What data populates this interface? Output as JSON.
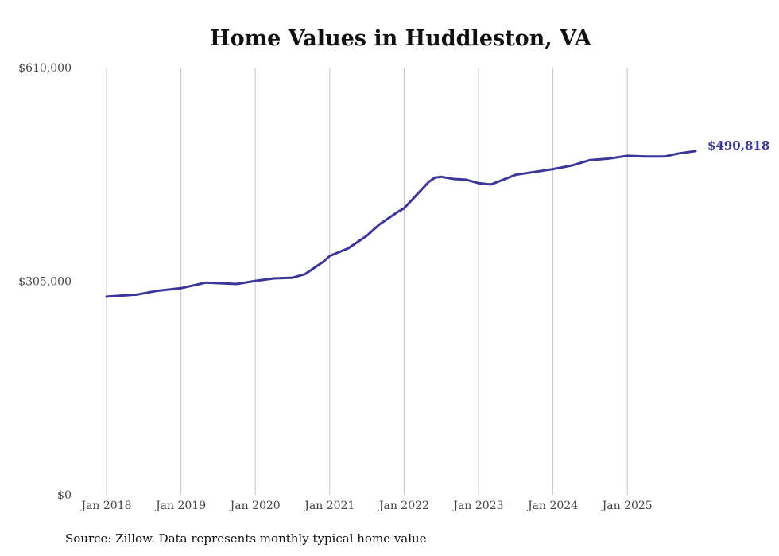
{
  "chart_data": {
    "type": "line",
    "title": "Home Values in Huddleston, VA",
    "source": "Source: Zillow. Data represents monthly typical home value",
    "xlabel": "",
    "ylabel": "",
    "ylim": [
      0,
      610000
    ],
    "y_ticks": [
      {
        "value": 0,
        "label": "$0"
      },
      {
        "value": 305000,
        "label": "$305,000"
      },
      {
        "value": 610000,
        "label": "$610,000"
      }
    ],
    "x_ticks": [
      {
        "month": 0,
        "label": "Jan 2018"
      },
      {
        "month": 12,
        "label": "Jan 2019"
      },
      {
        "month": 24,
        "label": "Jan 2020"
      },
      {
        "month": 36,
        "label": "Jan 2021"
      },
      {
        "month": 48,
        "label": "Jan 2022"
      },
      {
        "month": 60,
        "label": "Jan 2023"
      },
      {
        "month": 72,
        "label": "Jan 2024"
      },
      {
        "month": 84,
        "label": "Jan 2025"
      }
    ],
    "grid": "vertical",
    "line_color": "#3b3699",
    "end_label": "$490,818",
    "series": [
      {
        "name": "Typical home value",
        "points": [
          {
            "date": "2018-01",
            "month": 0,
            "value": 283000
          },
          {
            "date": "2018-06",
            "month": 5,
            "value": 286000
          },
          {
            "date": "2018-09",
            "month": 8,
            "value": 291000
          },
          {
            "date": "2019-01",
            "month": 12,
            "value": 295000
          },
          {
            "date": "2019-05",
            "month": 16,
            "value": 303000
          },
          {
            "date": "2019-10",
            "month": 21,
            "value": 301000
          },
          {
            "date": "2020-01",
            "month": 24,
            "value": 305500
          },
          {
            "date": "2020-04",
            "month": 27,
            "value": 309000
          },
          {
            "date": "2020-07",
            "month": 30,
            "value": 310000
          },
          {
            "date": "2020-09",
            "month": 32,
            "value": 315000
          },
          {
            "date": "2020-12",
            "month": 35,
            "value": 333000
          },
          {
            "date": "2021-01",
            "month": 36,
            "value": 341000
          },
          {
            "date": "2021-04",
            "month": 39,
            "value": 352000
          },
          {
            "date": "2021-07",
            "month": 42,
            "value": 370000
          },
          {
            "date": "2021-09",
            "month": 44,
            "value": 386000
          },
          {
            "date": "2021-12",
            "month": 47,
            "value": 404000
          },
          {
            "date": "2022-01",
            "month": 48,
            "value": 409000
          },
          {
            "date": "2022-03",
            "month": 50,
            "value": 428000
          },
          {
            "date": "2022-05",
            "month": 52,
            "value": 447000
          },
          {
            "date": "2022-06",
            "month": 53,
            "value": 453000
          },
          {
            "date": "2022-07",
            "month": 54,
            "value": 454000
          },
          {
            "date": "2022-09",
            "month": 56,
            "value": 451000
          },
          {
            "date": "2022-11",
            "month": 58,
            "value": 450000
          },
          {
            "date": "2023-01",
            "month": 60,
            "value": 445000
          },
          {
            "date": "2023-03",
            "month": 62,
            "value": 443000
          },
          {
            "date": "2023-05",
            "month": 64,
            "value": 450000
          },
          {
            "date": "2023-07",
            "month": 66,
            "value": 457000
          },
          {
            "date": "2023-10",
            "month": 69,
            "value": 461000
          },
          {
            "date": "2024-01",
            "month": 72,
            "value": 465000
          },
          {
            "date": "2024-04",
            "month": 75,
            "value": 470000
          },
          {
            "date": "2024-07",
            "month": 78,
            "value": 478000
          },
          {
            "date": "2024-10",
            "month": 81,
            "value": 480000
          },
          {
            "date": "2025-01",
            "month": 84,
            "value": 484000
          },
          {
            "date": "2025-04",
            "month": 87,
            "value": 483000
          },
          {
            "date": "2025-07",
            "month": 90,
            "value": 483000
          },
          {
            "date": "2025-09",
            "month": 92,
            "value": 487000
          },
          {
            "date": "2025-12",
            "month": 95,
            "value": 490818
          }
        ]
      }
    ]
  }
}
